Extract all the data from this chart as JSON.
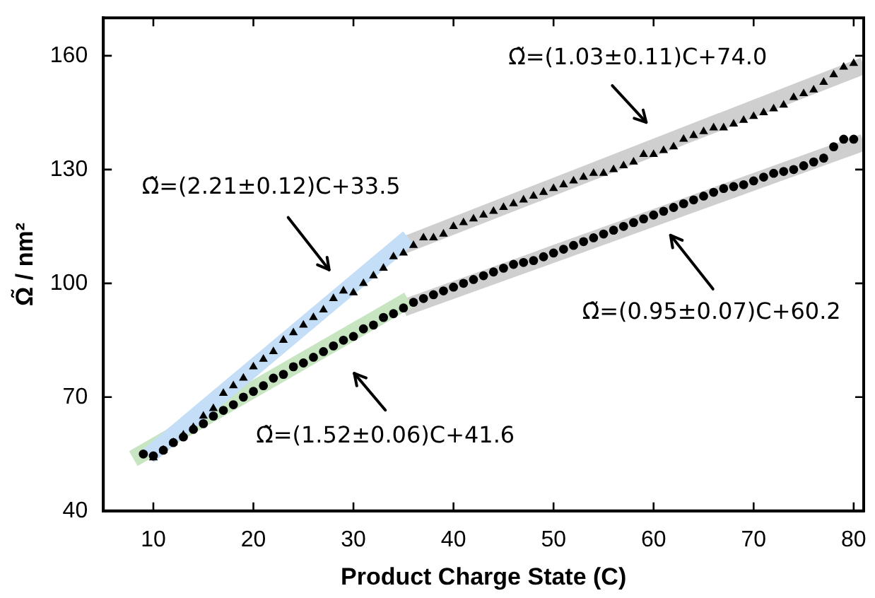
{
  "chart_data": {
    "type": "scatter",
    "xlabel": "Product Charge State (C)",
    "ylabel": "Ω̃ / nm²",
    "xlim": [
      5,
      81
    ],
    "ylim": [
      40,
      170
    ],
    "xticks": [
      10,
      20,
      30,
      40,
      50,
      60,
      70,
      80
    ],
    "yticks": [
      40,
      70,
      100,
      130,
      160
    ],
    "series": [
      {
        "type": "line",
        "color": "#c4def7",
        "x": [
          9.5,
          35.5
        ],
        "values": [
          54.5,
          112.0
        ],
        "marker": "none"
      },
      {
        "type": "line",
        "color": "#c8e5c2",
        "x": [
          8,
          35.5
        ],
        "values": [
          53.8,
          95.6
        ],
        "marker": "none"
      },
      {
        "type": "line",
        "color": "#cfcfcf",
        "x": [
          35,
          81
        ],
        "values": [
          110.0,
          157.4
        ],
        "marker": "none"
      },
      {
        "type": "line",
        "color": "#cfcfcf",
        "x": [
          35,
          81
        ],
        "values": [
          93.5,
          137.2
        ],
        "marker": "none"
      },
      {
        "type": "scatter",
        "color": "#000000",
        "marker": "triangle",
        "x": [
          10,
          11,
          12,
          13,
          14,
          15,
          16,
          17,
          18,
          19,
          20,
          21,
          22,
          23,
          24,
          25,
          26,
          27,
          28,
          29,
          30,
          31,
          32,
          33,
          34,
          35,
          36,
          37,
          38,
          39,
          40,
          41,
          42,
          43,
          44,
          45,
          46,
          47,
          48,
          49,
          50,
          51,
          52,
          53,
          54,
          55,
          56,
          57,
          58,
          59,
          60,
          61,
          62,
          63,
          64,
          65,
          66,
          67,
          68,
          69,
          70,
          71,
          72,
          73,
          74,
          75,
          76,
          77,
          78,
          79,
          80
        ],
        "values": [
          54,
          56,
          58,
          60,
          62,
          65,
          67,
          71,
          73,
          75,
          78,
          80,
          82,
          85,
          87,
          89,
          91,
          93,
          96,
          98,
          97.5,
          100,
          102,
          104,
          107,
          108,
          110,
          112,
          112,
          113,
          115,
          116,
          117,
          118,
          119,
          120,
          121,
          122,
          123,
          124,
          125,
          126,
          127,
          128,
          129,
          129,
          130,
          131,
          132,
          134,
          134,
          135,
          136,
          138,
          139,
          140,
          141,
          141,
          142,
          143,
          144,
          145,
          146,
          147,
          149,
          150,
          151,
          153,
          155,
          157,
          158
        ]
      },
      {
        "type": "scatter",
        "color": "#000000",
        "marker": "circle",
        "x": [
          9,
          10,
          11,
          12,
          13,
          14,
          15,
          16,
          17,
          18,
          19,
          20,
          21,
          22,
          23,
          24,
          25,
          26,
          27,
          28,
          29,
          30,
          31,
          32,
          33,
          34,
          35,
          36,
          37,
          38,
          39,
          40,
          41,
          42,
          43,
          44,
          45,
          46,
          47,
          48,
          49,
          50,
          51,
          52,
          53,
          54,
          55,
          56,
          57,
          58,
          59,
          60,
          61,
          62,
          63,
          64,
          65,
          66,
          67,
          68,
          69,
          70,
          71,
          72,
          73,
          74,
          75,
          76,
          77,
          78,
          79,
          80
        ],
        "values": [
          55,
          54.5,
          56,
          58,
          59.5,
          61.5,
          63,
          65,
          66.5,
          68,
          70,
          71.5,
          73,
          75,
          76,
          78,
          79,
          80.5,
          82,
          83.5,
          85,
          86,
          88,
          89,
          91,
          92,
          93.5,
          95,
          96,
          97,
          98,
          99,
          100,
          101,
          102,
          103,
          104,
          105,
          105.5,
          106,
          107,
          108,
          109,
          110,
          111,
          112,
          113,
          114,
          115,
          116,
          117,
          118,
          119,
          120,
          121,
          122,
          123,
          124,
          125,
          125.5,
          126,
          127,
          128,
          129,
          129.5,
          130,
          131,
          132,
          133,
          136,
          138,
          138
        ]
      }
    ],
    "annotations": [
      "Ω̃=(1.03±0.11)C+74.0",
      "Ω̃=(2.21±0.12)C+33.5",
      "Ω̃=(0.95±0.07)C+60.2",
      "Ω̃=(1.52±0.06)C+41.6"
    ]
  }
}
